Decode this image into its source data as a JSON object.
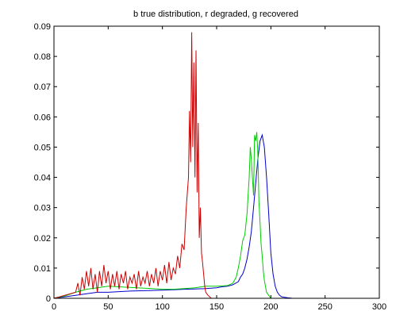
{
  "chart_data": {
    "type": "line",
    "title": "b true distribution, r degraded, g recovered",
    "xlabel": "",
    "ylabel": "",
    "xlim": [
      0,
      300
    ],
    "ylim": [
      0,
      0.09
    ],
    "xticks": [
      0,
      50,
      100,
      150,
      200,
      250,
      300
    ],
    "yticks": [
      0,
      0.01,
      0.02,
      0.03,
      0.04,
      0.05,
      0.06,
      0.07,
      0.08,
      0.09
    ],
    "xtick_labels": [
      "0",
      "50",
      "100",
      "150",
      "200",
      "250",
      "300"
    ],
    "ytick_labels": [
      "0",
      "0.01",
      "0.02",
      "0.03",
      "0.04",
      "0.05",
      "0.06",
      "0.07",
      "0.08",
      "0.09"
    ],
    "grid": false,
    "legend": "none",
    "series": [
      {
        "color": "#0000cc",
        "x": [
          0,
          10,
          20,
          30,
          40,
          50,
          60,
          70,
          80,
          90,
          100,
          110,
          120,
          130,
          140,
          150,
          155,
          160,
          165,
          170,
          172,
          174,
          176,
          178,
          180,
          182,
          184,
          186,
          188,
          190,
          192,
          194,
          196,
          198,
          200,
          202,
          204,
          206,
          208,
          210,
          215,
          220,
          300
        ],
        "y": [
          0,
          0.0005,
          0.001,
          0.0015,
          0.002,
          0.002,
          0.0022,
          0.0024,
          0.0025,
          0.0026,
          0.0027,
          0.0028,
          0.003,
          0.0031,
          0.0032,
          0.0035,
          0.0038,
          0.004,
          0.0045,
          0.0055,
          0.007,
          0.008,
          0.01,
          0.013,
          0.017,
          0.022,
          0.03,
          0.038,
          0.046,
          0.052,
          0.054,
          0.05,
          0.04,
          0.028,
          0.015,
          0.008,
          0.004,
          0.002,
          0.001,
          0.0005,
          0.0002,
          0,
          0
        ]
      },
      {
        "color": "#00cc00",
        "x": [
          0,
          10,
          20,
          30,
          40,
          50,
          60,
          70,
          80,
          90,
          100,
          110,
          120,
          130,
          140,
          150,
          160,
          165,
          168,
          170,
          172,
          174,
          176,
          178,
          180,
          181,
          182,
          183,
          184,
          185,
          186,
          187,
          188,
          189,
          190,
          191,
          192,
          193,
          194,
          195,
          196,
          198,
          200,
          205,
          210,
          300
        ],
        "y": [
          0,
          0.0008,
          0.002,
          0.003,
          0.0035,
          0.004,
          0.0038,
          0.0036,
          0.0034,
          0.0032,
          0.003,
          0.003,
          0.0032,
          0.0035,
          0.004,
          0.004,
          0.0042,
          0.005,
          0.007,
          0.01,
          0.014,
          0.019,
          0.021,
          0.028,
          0.04,
          0.05,
          0.046,
          0.04,
          0.034,
          0.054,
          0.052,
          0.055,
          0.048,
          0.032,
          0.025,
          0.018,
          0.014,
          0.009,
          0.006,
          0.004,
          0.002,
          0.001,
          0,
          0,
          0,
          0
        ]
      },
      {
        "color": "#cc0000",
        "x": [
          0,
          10,
          20,
          22,
          24,
          26,
          28,
          30,
          32,
          34,
          36,
          38,
          40,
          42,
          44,
          46,
          48,
          50,
          52,
          54,
          56,
          58,
          60,
          62,
          64,
          66,
          68,
          70,
          72,
          74,
          76,
          78,
          80,
          82,
          84,
          86,
          88,
          90,
          92,
          94,
          96,
          98,
          100,
          102,
          104,
          106,
          108,
          110,
          112,
          114,
          116,
          118,
          120,
          122,
          124,
          125,
          126,
          127,
          128,
          129,
          130,
          131,
          132,
          133,
          134,
          135,
          136,
          137,
          138,
          139,
          140,
          142,
          145,
          150,
          300
        ],
        "y": [
          0,
          0.001,
          0.002,
          0.005,
          0.001,
          0.007,
          0.003,
          0.009,
          0.004,
          0.01,
          0.003,
          0.008,
          0.002,
          0.009,
          0.004,
          0.011,
          0.005,
          0.009,
          0.003,
          0.008,
          0.004,
          0.009,
          0.003,
          0.008,
          0.005,
          0.009,
          0.003,
          0.007,
          0.005,
          0.008,
          0.003,
          0.009,
          0.004,
          0.007,
          0.005,
          0.009,
          0.004,
          0.008,
          0.005,
          0.01,
          0.004,
          0.009,
          0.006,
          0.011,
          0.005,
          0.012,
          0.006,
          0.01,
          0.008,
          0.014,
          0.01,
          0.018,
          0.016,
          0.03,
          0.04,
          0.062,
          0.045,
          0.088,
          0.05,
          0.078,
          0.04,
          0.082,
          0.035,
          0.058,
          0.02,
          0.03,
          0.015,
          0.012,
          0.008,
          0.004,
          0.002,
          0.001,
          0,
          0,
          0
        ]
      }
    ]
  }
}
